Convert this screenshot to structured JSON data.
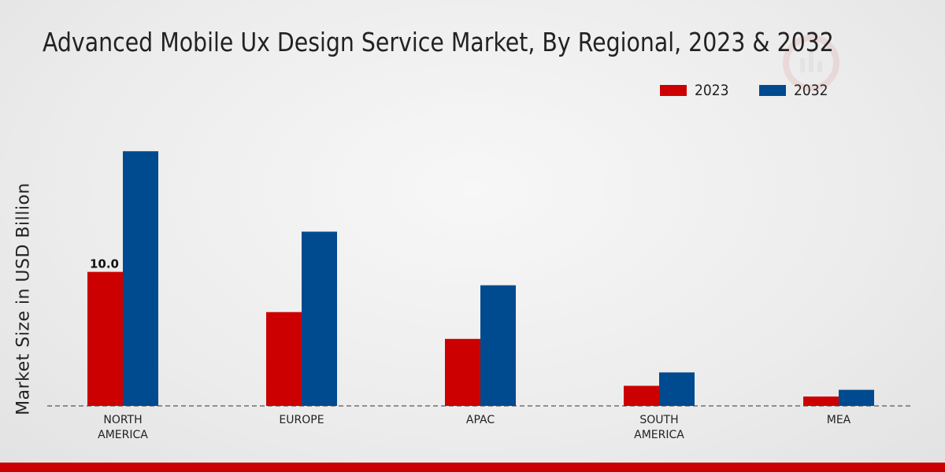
{
  "colors": {
    "series_2023": "#cc0000",
    "series_2032": "#004a8f",
    "footer": "#cc0000"
  },
  "chart_data": {
    "type": "bar",
    "title": "Advanced Mobile Ux Design Service Market, By Regional, 2023 & 2032",
    "ylabel": "Market Size in USD Billion",
    "xlabel": "",
    "categories": [
      "NORTH\nAMERICA",
      "EUROPE",
      "APAC",
      "SOUTH\nAMERICA",
      "MEA"
    ],
    "series": [
      {
        "name": "2023",
        "values": [
          10.0,
          7.0,
          5.0,
          1.5,
          0.7
        ]
      },
      {
        "name": "2032",
        "values": [
          19.0,
          13.0,
          9.0,
          2.5,
          1.2
        ]
      }
    ],
    "ylim": [
      0,
      25
    ],
    "data_labels": [
      {
        "series": "2023",
        "category_index": 0,
        "text": "10.0"
      }
    ],
    "legend_position": "top-right",
    "grid": false
  }
}
